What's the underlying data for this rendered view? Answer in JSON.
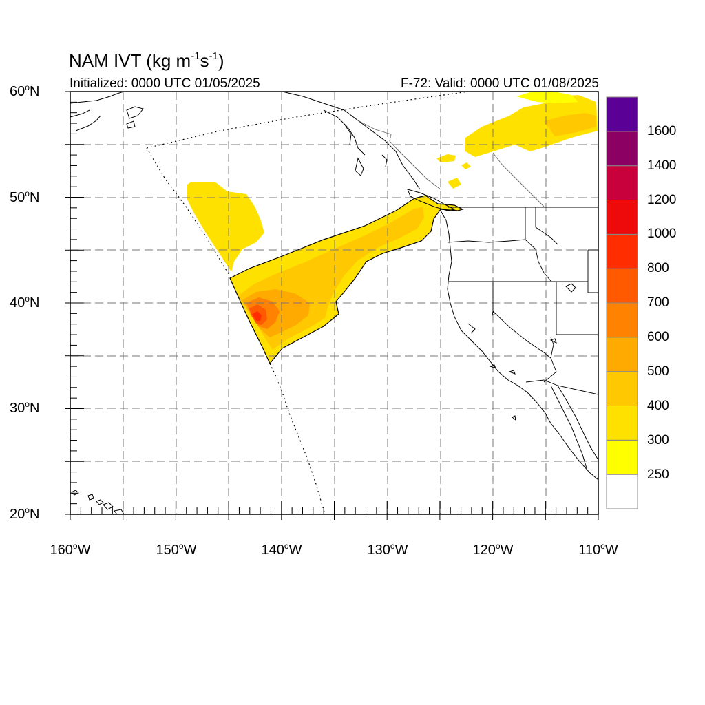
{
  "title": {
    "main_prefix": "NAM IVT (kg m",
    "main_sup1": "-1",
    "main_mid": "s",
    "main_sup2": "-1",
    "main_suffix": ")",
    "initialized": "Initialized: 0000 UTC 01/05/2025",
    "valid": "F-72: Valid: 0000 UTC 01/08/2025"
  },
  "map": {
    "projection": "cylindrical equidistant",
    "lon_range": [
      -160,
      -110
    ],
    "lat_range": [
      20,
      60
    ],
    "grid": "dashed every 5 degrees",
    "lat_labels": [
      {
        "deg": "60",
        "hemi": "N"
      },
      {
        "deg": "50",
        "hemi": "N"
      },
      {
        "deg": "40",
        "hemi": "N"
      },
      {
        "deg": "30",
        "hemi": "N"
      },
      {
        "deg": "20",
        "hemi": "N"
      }
    ],
    "lon_labels": [
      {
        "deg": "160",
        "hemi": "W"
      },
      {
        "deg": "150",
        "hemi": "W"
      },
      {
        "deg": "140",
        "hemi": "W"
      },
      {
        "deg": "130",
        "hemi": "W"
      },
      {
        "deg": "120",
        "hemi": "W"
      },
      {
        "deg": "110",
        "hemi": "W"
      }
    ],
    "colors": {
      "coast": "#000000",
      "border": "#000000",
      "grid": "#777777",
      "domain_boundary": "#000000"
    }
  },
  "colorbar": {
    "labels": [
      "1600",
      "1400",
      "1200",
      "1000",
      "800",
      "700",
      "600",
      "500",
      "400",
      "300",
      "250"
    ],
    "bins": [
      {
        "range": "below 250",
        "color": "#ffffff"
      },
      {
        "range": "250-300",
        "color": "#ffff00"
      },
      {
        "range": "300-400",
        "color": "#ffe100"
      },
      {
        "range": "400-500",
        "color": "#ffc800"
      },
      {
        "range": "500-600",
        "color": "#ffaa00"
      },
      {
        "range": "600-700",
        "color": "#ff8200"
      },
      {
        "range": "700-800",
        "color": "#ff5a00"
      },
      {
        "range": "800-1000",
        "color": "#ff2d00"
      },
      {
        "range": "1000-1200",
        "color": "#ee0a0a"
      },
      {
        "range": "1200-1400",
        "color": "#c8003c"
      },
      {
        "range": "1400-1600",
        "color": "#8c0064"
      },
      {
        "range": "above 1600",
        "color": "#5a0096"
      }
    ]
  }
}
